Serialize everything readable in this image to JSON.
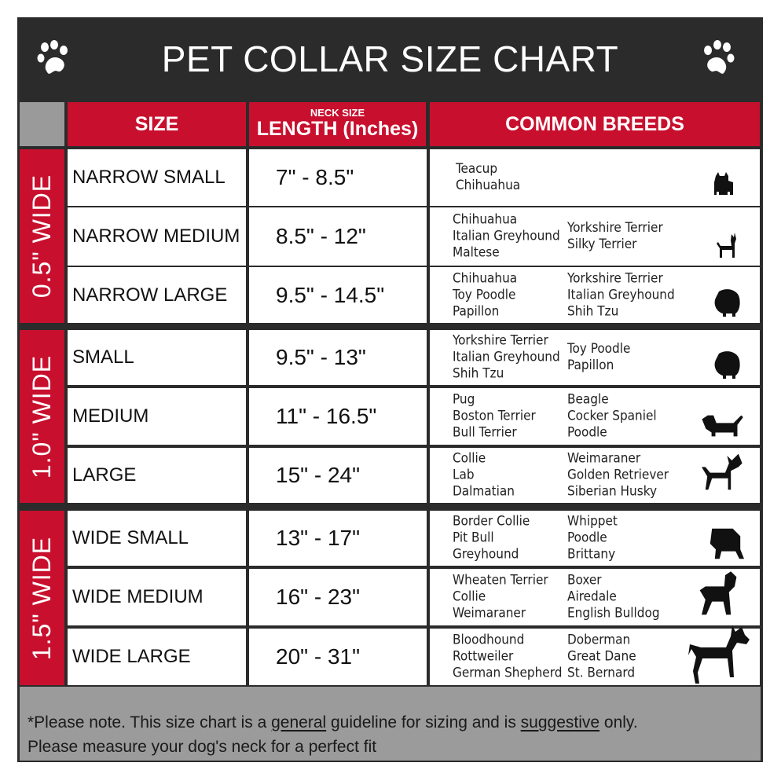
{
  "title": "PET COLLAR SIZE CHART",
  "headers": {
    "size": "SIZE",
    "length_small": "NECK SIZE",
    "length": "LENGTH (Inches)",
    "breeds": "COMMON BREEDS"
  },
  "groups": [
    {
      "label": "0.5\" WIDE"
    },
    {
      "label": "1.0\" WIDE"
    },
    {
      "label": "1.5\" WIDE"
    }
  ],
  "rows": [
    {
      "size": "NARROW SMALL",
      "length": "7\" - 8.5\"",
      "col1": [
        "Teacup",
        "Chihuahua"
      ],
      "col2": [],
      "icon": "yorkie-silhouette-icon"
    },
    {
      "size": "NARROW MEDIUM",
      "length": "8.5\" - 12\"",
      "col1": [
        "Chihuahua",
        "Italian Greyhound",
        "Maltese"
      ],
      "col2": [
        "Yorkshire Terrier",
        "Silky Terrier"
      ],
      "icon": "chihuahua-silhouette-icon"
    },
    {
      "size": "NARROW LARGE",
      "length": "9.5\" - 14.5\"",
      "col1": [
        "Chihuahua",
        "Toy Poodle",
        "Papillon"
      ],
      "col2": [
        "Yorkshire Terrier",
        "Italian Greyhound",
        "Shih Tzu"
      ],
      "icon": "pomeranian-silhouette-icon"
    },
    {
      "size": "SMALL",
      "length": "9.5\" - 13\"",
      "col1": [
        "Yorkshire Terrier",
        "Italian Greyhound",
        "Shih Tzu"
      ],
      "col2": [
        "Toy Poodle",
        "Papillon"
      ],
      "icon": "pomeranian-silhouette-icon"
    },
    {
      "size": "MEDIUM",
      "length": "11\" - 16.5\"",
      "col1": [
        "Pug",
        "Boston Terrier",
        "Bull Terrier"
      ],
      "col2": [
        "Beagle",
        "Cocker Spaniel",
        "Poodle"
      ],
      "icon": "dachshund-silhouette-icon"
    },
    {
      "size": "LARGE",
      "length": "15\" - 24\"",
      "col1": [
        "Collie",
        "Lab",
        "Dalmatian"
      ],
      "col2": [
        "Weimaraner",
        "Golden Retriever",
        "Siberian Husky"
      ],
      "icon": "husky-silhouette-icon"
    },
    {
      "size": "WIDE SMALL",
      "length": "13\" - 17\"",
      "col1": [
        "Border Collie",
        "Pit Bull",
        "Greyhound"
      ],
      "col2": [
        "Whippet",
        "Poodle",
        "Brittany"
      ],
      "icon": "bulldog-silhouette-icon"
    },
    {
      "size": "WIDE MEDIUM",
      "length": "16\" - 23\"",
      "col1": [
        "Wheaten Terrier",
        "Collie",
        "Weimaraner"
      ],
      "col2": [
        "Boxer",
        "Airedale",
        "English Bulldog"
      ],
      "icon": "pitbull-silhouette-icon"
    },
    {
      "size": "WIDE LARGE",
      "length": "20\" - 31\"",
      "col1": [
        "Bloodhound",
        "Rottweiler",
        "German Shepherd"
      ],
      "col2": [
        "Doberman",
        "Great Dane",
        "St. Bernard"
      ],
      "icon": "doberman-silhouette-icon"
    }
  ],
  "footer": {
    "p1": "*Please note. This size chart is a ",
    "u1": "general",
    "p2": " guideline for sizing and is ",
    "u2": "suggestive",
    "p3": " only.",
    "line2": "Please measure your dog's neck for a perfect fit"
  },
  "colors": {
    "accent": "#c8102e",
    "dark": "#2b2b2b",
    "gray": "#9b9b9b"
  }
}
